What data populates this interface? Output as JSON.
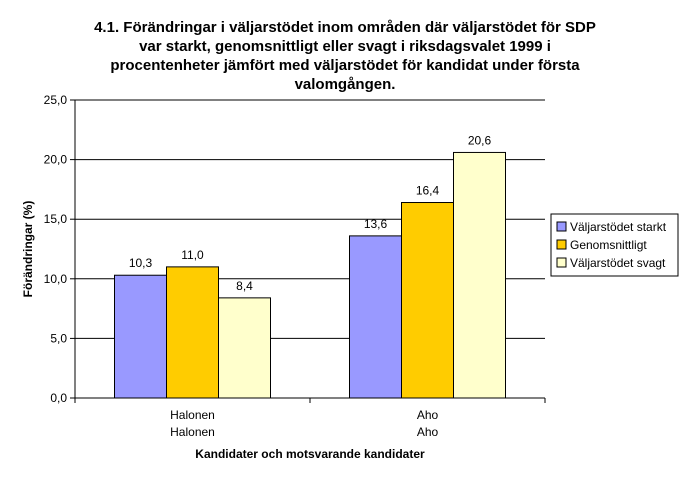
{
  "chart_data": {
    "type": "bar",
    "title_lines": [
      "4.1. Förändringar i väljarstödet inom områden där väljarstödet för SDP",
      "var starkt, genomsnittligt eller svagt i riksdagsvalet 1999 i",
      "procentenheter jämfört med väljarstödet för kandidat under första",
      "valomgången."
    ],
    "ylabel": "Förändringar (%)",
    "xlabel": "Kandidater och motsvarande kandidater",
    "categories": [
      {
        "line1": "Halonen",
        "line2": "Halonen"
      },
      {
        "line1": "Aho",
        "line2": "Aho"
      }
    ],
    "series": [
      {
        "name": "Väljarstödet starkt",
        "color": "#9999ff",
        "values": [
          10.3,
          13.6
        ],
        "labels": [
          "10,3",
          "13,6"
        ]
      },
      {
        "name": "Genomsnittligt",
        "color": "#ffcc00",
        "values": [
          11.0,
          16.4
        ],
        "labels": [
          "11,0",
          "16,4"
        ]
      },
      {
        "name": "Väljarstödet svagt",
        "color": "#ffffcc",
        "values": [
          8.4,
          20.6
        ],
        "labels": [
          "8,4",
          "20,6"
        ]
      }
    ],
    "ylim": [
      0,
      25
    ],
    "yticks": [
      0,
      5,
      10,
      15,
      20,
      25
    ],
    "ytick_labels": [
      "0,0",
      "5,0",
      "10,0",
      "15,0",
      "20,0",
      "25,0"
    ],
    "grid": true,
    "legend": "right"
  }
}
